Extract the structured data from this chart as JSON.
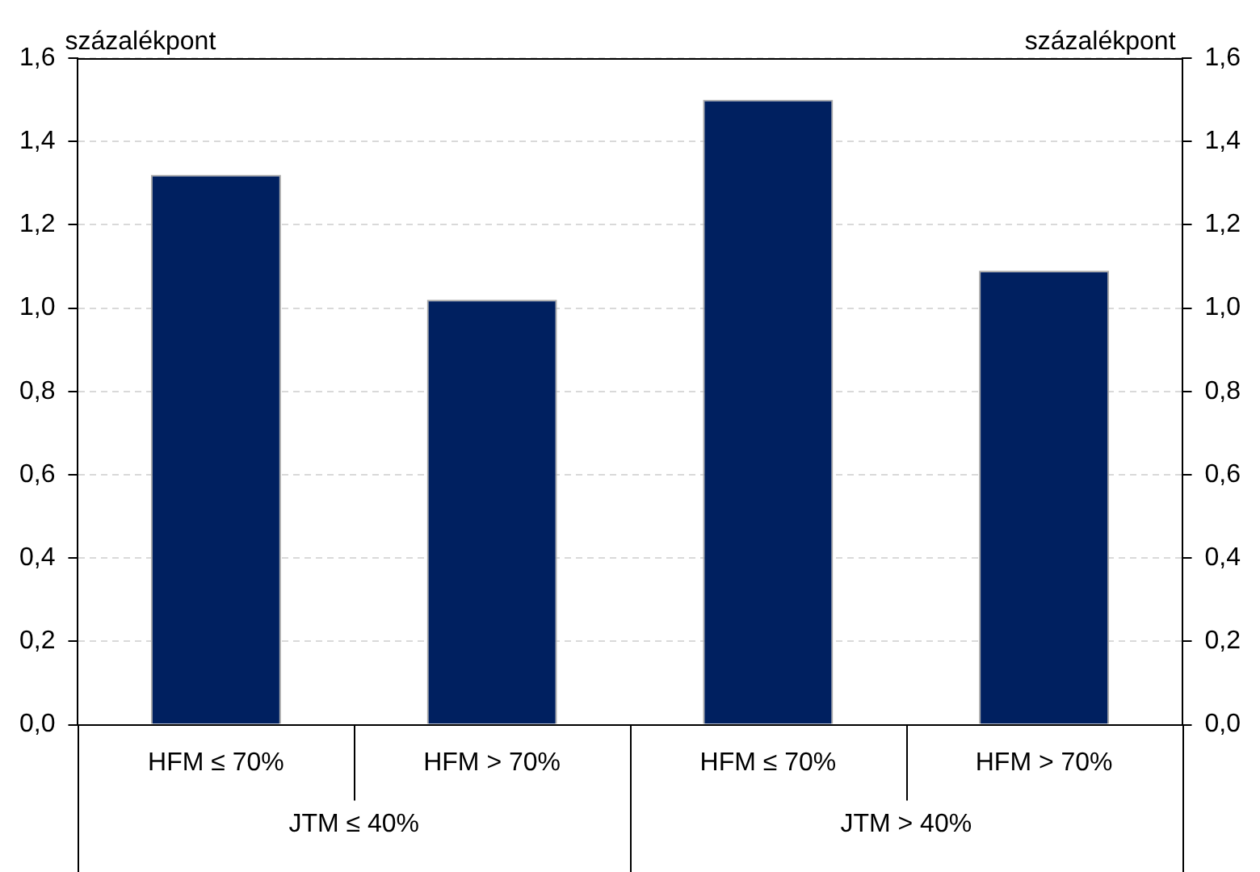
{
  "chart_data": {
    "type": "bar",
    "ylabel": "százalékpont",
    "y2label": "százalékpont",
    "categories": [
      "HFM ≤ 70%",
      "HFM > 70%",
      "HFM ≤ 70%",
      "HFM > 70%"
    ],
    "values": [
      1.32,
      1.02,
      1.5,
      1.09
    ],
    "color": "#002060",
    "ylim": [
      0,
      1.6
    ],
    "yticks": [
      {
        "value": 0,
        "label": "0,0"
      },
      {
        "value": 0.2,
        "label": "0,2"
      },
      {
        "value": 0.4,
        "label": "0,4"
      },
      {
        "value": 0.6,
        "label": "0,6"
      },
      {
        "value": 0.8,
        "label": "0,8"
      },
      {
        "value": 1,
        "label": "1,0"
      },
      {
        "value": 1.2,
        "label": "1,2"
      },
      {
        "value": 1.4,
        "label": "1,4"
      },
      {
        "value": 1.6,
        "label": "1,6"
      }
    ],
    "y2lim": [
      0,
      1.6
    ],
    "y2ticks": [
      {
        "value": 0,
        "label": "0,0"
      },
      {
        "value": 0.2,
        "label": "0,2"
      },
      {
        "value": 0.4,
        "label": "0,4"
      },
      {
        "value": 0.6,
        "label": "0,6"
      },
      {
        "value": 0.8,
        "label": "0,8"
      },
      {
        "value": 1,
        "label": "1,0"
      },
      {
        "value": 1.2,
        "label": "1,2"
      },
      {
        "value": 1.4,
        "label": "1,4"
      },
      {
        "value": 1.6,
        "label": "1,6"
      }
    ],
    "annotations": [
      "JTM ≤ 40%",
      "JTM > 40%"
    ],
    "grid": "y",
    "legend": false
  }
}
